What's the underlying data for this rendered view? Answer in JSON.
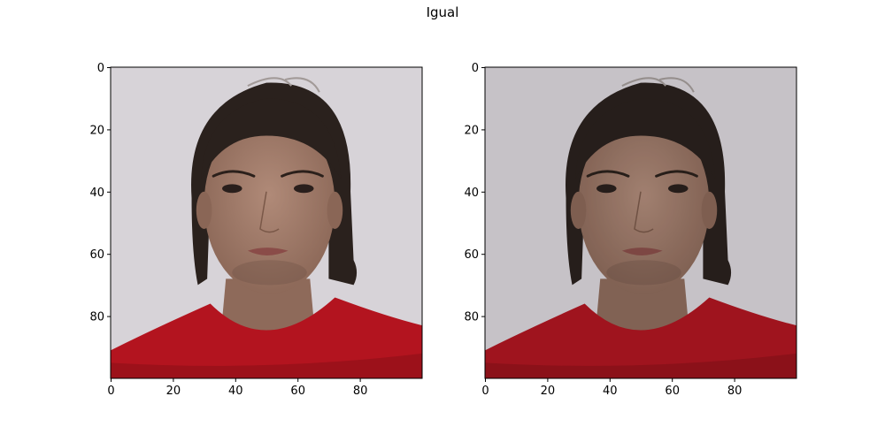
{
  "figure": {
    "title": "Igual"
  },
  "panels": [
    {
      "subject": "face photograph of a young man with dark hair and a red shirt",
      "x_ticks": [
        0,
        20,
        40,
        60,
        80
      ],
      "y_ticks": [
        0,
        20,
        40,
        60,
        80
      ],
      "x_tick_labels": [
        "0",
        "20",
        "40",
        "60",
        "80"
      ],
      "y_tick_labels": [
        "0",
        "20",
        "40",
        "60",
        "80"
      ],
      "image_extent": [
        100,
        100
      ],
      "tone": "normal"
    },
    {
      "subject": "face photograph of a young man with dark hair and a red shirt",
      "x_ticks": [
        0,
        20,
        40,
        60,
        80
      ],
      "y_ticks": [
        0,
        20,
        40,
        60,
        80
      ],
      "x_tick_labels": [
        "0",
        "20",
        "40",
        "60",
        "80"
      ],
      "y_tick_labels": [
        "0",
        "20",
        "40",
        "60",
        "80"
      ],
      "image_extent": [
        100,
        100
      ],
      "tone": "darker"
    }
  ],
  "colors": {
    "background": "#d7d3d8",
    "skin": "#9f7c6b",
    "hair": "#2a211d",
    "shirt": "#b3141f",
    "shirt_dark": "#8c0f18",
    "lips": "#8a4c48"
  }
}
